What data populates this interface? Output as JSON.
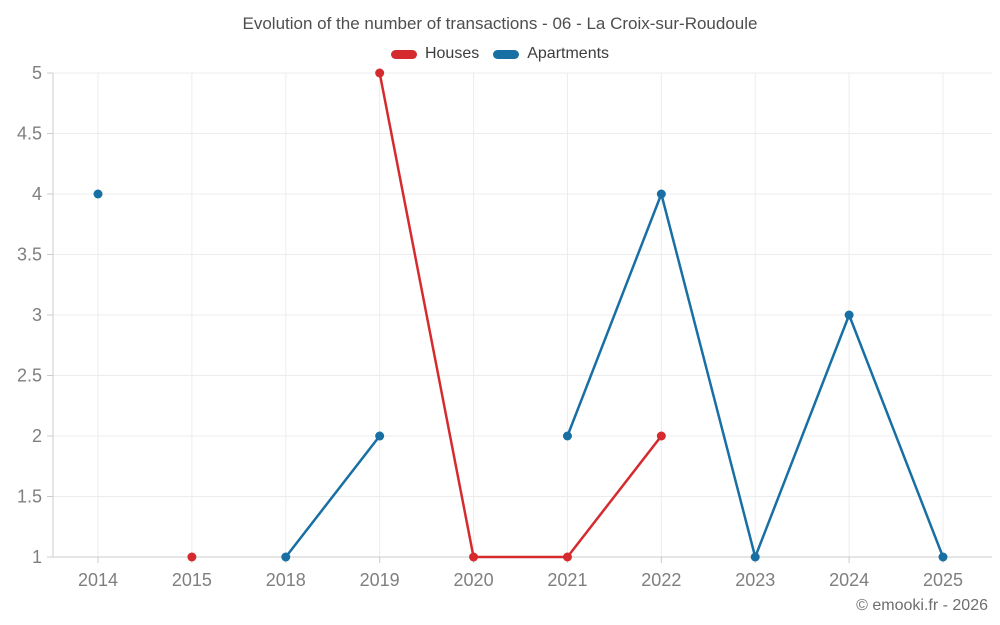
{
  "chart_data": {
    "type": "line",
    "title": "Evolution of the number of transactions - 06 - La Croix-sur-Roudoule",
    "categories": [
      "2014",
      "2015",
      "2018",
      "2019",
      "2020",
      "2021",
      "2022",
      "2023",
      "2024",
      "2025"
    ],
    "series": [
      {
        "name": "Houses",
        "color": "#d62b2e",
        "values": [
          null,
          1,
          null,
          5,
          1,
          1,
          2,
          null,
          null,
          null
        ]
      },
      {
        "name": "Apartments",
        "color": "#186fa4",
        "values": [
          4,
          null,
          1,
          2,
          null,
          2,
          4,
          1,
          3,
          1
        ]
      }
    ],
    "xlabel": "",
    "ylabel": "",
    "ylim": [
      1,
      5
    ],
    "yticks": [
      1,
      1.5,
      2,
      2.5,
      3,
      3.5,
      4,
      4.5,
      5
    ],
    "grid": true,
    "legend_position": "top-center"
  },
  "colors": {
    "grid_line": "#ececec",
    "axis_line": "#cccccc",
    "title_text": "#4e4e4e",
    "axis_label_text": "#7f7f7f",
    "footer_text": "#6e6e6e"
  },
  "footer": {
    "text": "© emooki.fr - 2026"
  }
}
